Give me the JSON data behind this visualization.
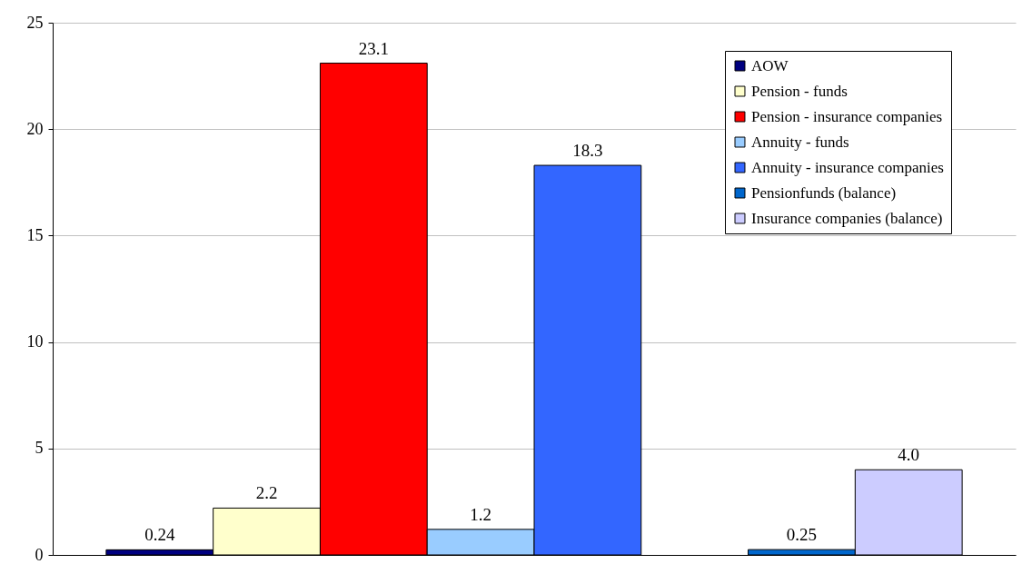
{
  "chart_data": {
    "type": "bar",
    "categories": [
      null,
      null,
      null,
      null,
      null,
      null,
      null,
      null
    ],
    "series": [
      {
        "name": "AOW",
        "color": "#000080",
        "values": [
          0.24,
          null,
          null,
          null,
          null,
          null,
          null,
          null
        ],
        "value_labels": [
          "0.24",
          null,
          null,
          null,
          null,
          null,
          null,
          null
        ]
      },
      {
        "name": "Pension - funds",
        "color": "#ffffcc",
        "values": [
          null,
          2.2,
          null,
          null,
          null,
          null,
          null,
          null
        ],
        "value_labels": [
          null,
          "2.2",
          null,
          null,
          null,
          null,
          null,
          null
        ]
      },
      {
        "name": "Pension - insurance companies",
        "color": "#ff0000",
        "values": [
          null,
          null,
          23.1,
          null,
          null,
          null,
          null,
          null
        ],
        "value_labels": [
          null,
          null,
          "23.1",
          null,
          null,
          null,
          null,
          null
        ]
      },
      {
        "name": "Annuity - funds",
        "color": "#99ccff",
        "values": [
          null,
          null,
          null,
          1.2,
          null,
          null,
          null,
          null
        ],
        "value_labels": [
          null,
          null,
          null,
          "1.2",
          null,
          null,
          null,
          null
        ]
      },
      {
        "name": "Annuity - insurance companies",
        "color": "#3366ff",
        "values": [
          null,
          null,
          null,
          null,
          18.3,
          null,
          null,
          null
        ],
        "value_labels": [
          null,
          null,
          null,
          null,
          "18.3",
          null,
          null,
          null
        ]
      },
      {
        "name": "Pensionfunds (balance)",
        "color": "#0066cc",
        "values": [
          null,
          null,
          null,
          null,
          null,
          null,
          0.25,
          null
        ],
        "value_labels": [
          null,
          null,
          null,
          null,
          null,
          null,
          "0.25",
          null
        ]
      },
      {
        "name": "Insurance companies (balance)",
        "color": "#ccccff",
        "values": [
          null,
          null,
          null,
          null,
          null,
          null,
          null,
          4.0
        ],
        "value_labels": [
          null,
          null,
          null,
          null,
          null,
          null,
          null,
          "4.0"
        ]
      }
    ],
    "ylim": [
      0,
      25
    ],
    "yticks": [
      0,
      5,
      10,
      15,
      20,
      25
    ],
    "grid": "y",
    "legend": "top right",
    "tick_labels": "y"
  }
}
